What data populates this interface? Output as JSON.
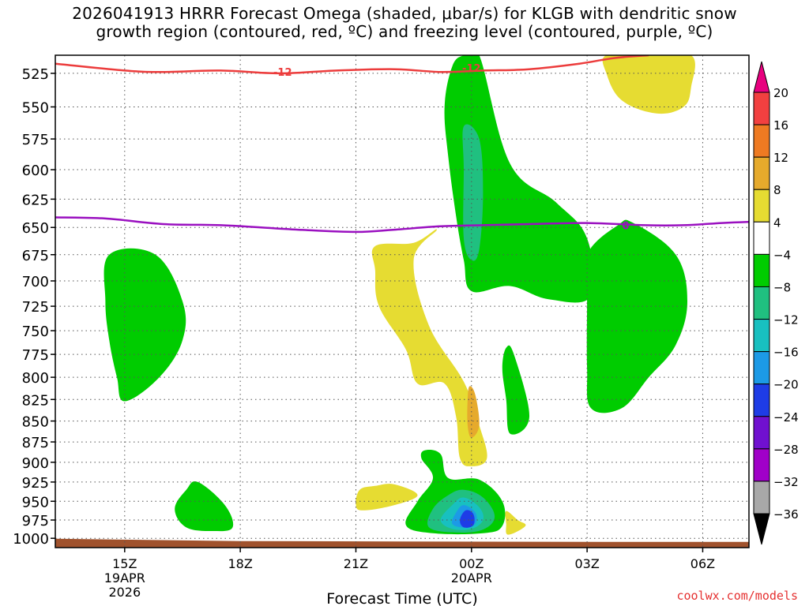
{
  "chart_data": {
    "type": "heatmap",
    "title_line1": "2026041913 HRRR Forecast Omega (shaded, μbar/s) for KLGB with dendritic snow",
    "title_line2": "growth region (contoured, red, ºC) and freezing level (contoured, purple, ºC)",
    "xlabel": "Forecast Time (UTC)",
    "ylabel": "",
    "y_scale": "log-pressure",
    "y_ticks": [
      525,
      550,
      575,
      600,
      625,
      650,
      675,
      700,
      725,
      750,
      775,
      800,
      825,
      850,
      875,
      900,
      925,
      950,
      975,
      1000
    ],
    "ylim": [
      1013,
      512
    ],
    "x_range_hours": [
      13.2,
      31.2
    ],
    "x_ticks": [
      {
        "hour": 15,
        "label": "15Z",
        "sub1": "19APR",
        "sub2": "2026"
      },
      {
        "hour": 18,
        "label": "18Z",
        "sub1": "",
        "sub2": ""
      },
      {
        "hour": 21,
        "label": "21Z",
        "sub1": "",
        "sub2": ""
      },
      {
        "hour": 24,
        "label": "00Z",
        "sub1": "20APR",
        "sub2": ""
      },
      {
        "hour": 27,
        "label": "03Z",
        "sub1": "",
        "sub2": ""
      },
      {
        "hour": 30,
        "label": "06Z",
        "sub1": "",
        "sub2": ""
      }
    ],
    "colorbar": {
      "labels": [
        "20",
        "16",
        "12",
        "8",
        "4",
        "−4",
        "−8",
        "−12",
        "−16",
        "−20",
        "−24",
        "−28",
        "−32",
        "−36"
      ],
      "colors": [
        "#e8007f",
        "#f24040",
        "#ee7a22",
        "#e6aa2c",
        "#e6dc32",
        "#ffffff",
        "#00cc00",
        "#20c080",
        "#18c0c0",
        "#1c9ae6",
        "#1e3ce6",
        "#7010d0",
        "#a000c8",
        "#a8a8a8",
        "#000000"
      ]
    },
    "regions": [
      {
        "name": "green-15z",
        "color": "#00cc00",
        "points": [
          [
            14.6,
            675
          ],
          [
            15.8,
            675
          ],
          [
            16.5,
            720
          ],
          [
            16.5,
            760
          ],
          [
            15.9,
            800
          ],
          [
            15.0,
            827
          ],
          [
            14.8,
            800
          ],
          [
            14.6,
            760
          ],
          [
            14.5,
            720
          ]
        ]
      },
      {
        "name": "green-top-00z",
        "color": "#00cc00",
        "points": [
          [
            23.8,
            512
          ],
          [
            24.2,
            512
          ],
          [
            25.0,
            595
          ],
          [
            26.2,
            628
          ],
          [
            27.0,
            660
          ],
          [
            27.1,
            715
          ],
          [
            26.0,
            718
          ],
          [
            25.0,
            705
          ],
          [
            24.0,
            710
          ],
          [
            23.8,
            680
          ],
          [
            23.6,
            640
          ],
          [
            23.4,
            590
          ],
          [
            23.3,
            550
          ],
          [
            23.5,
            520
          ]
        ]
      },
      {
        "name": "green-right",
        "color": "#00cc00",
        "points": [
          [
            27.8,
            648
          ],
          [
            28.2,
            646
          ],
          [
            29.3,
            675
          ],
          [
            29.6,
            720
          ],
          [
            29.3,
            765
          ],
          [
            28.6,
            800
          ],
          [
            27.9,
            835
          ],
          [
            27.1,
            835
          ],
          [
            27.0,
            790
          ],
          [
            27.0,
            720
          ],
          [
            27.0,
            675
          ]
        ]
      },
      {
        "name": "green-small-01z",
        "color": "#00cc00",
        "points": [
          [
            24.9,
            768
          ],
          [
            25.1,
            775
          ],
          [
            25.5,
            845
          ],
          [
            25.0,
            865
          ],
          [
            24.9,
            825
          ],
          [
            24.8,
            790
          ]
        ]
      },
      {
        "name": "green-17z",
        "color": "#00cc00",
        "points": [
          [
            16.9,
            925
          ],
          [
            17.6,
            955
          ],
          [
            17.8,
            985
          ],
          [
            17.3,
            990
          ],
          [
            16.6,
            985
          ],
          [
            16.3,
            960
          ],
          [
            16.6,
            935
          ]
        ]
      },
      {
        "name": "green-bottom-00z",
        "color": "#00cc00",
        "points": [
          [
            22.8,
            885
          ],
          [
            23.2,
            890
          ],
          [
            23.4,
            920
          ],
          [
            24.2,
            922
          ],
          [
            24.8,
            950
          ],
          [
            24.8,
            983
          ],
          [
            24.3,
            993
          ],
          [
            23.0,
            993
          ],
          [
            22.3,
            982
          ],
          [
            22.6,
            950
          ],
          [
            23.0,
            920
          ],
          [
            22.7,
            895
          ]
        ]
      },
      {
        "name": "aqua-mid-00z",
        "color": "#20c080",
        "points": [
          [
            23.8,
            565
          ],
          [
            24.2,
            575
          ],
          [
            24.3,
            620
          ],
          [
            24.2,
            670
          ],
          [
            24.0,
            680
          ],
          [
            23.8,
            660
          ],
          [
            23.8,
            600
          ]
        ]
      },
      {
        "name": "aqua-low-00z",
        "color": "#20c080",
        "points": [
          [
            23.8,
            935
          ],
          [
            24.3,
            945
          ],
          [
            24.6,
            970
          ],
          [
            24.3,
            988
          ],
          [
            23.6,
            992
          ],
          [
            22.9,
            985
          ],
          [
            23.0,
            960
          ],
          [
            23.4,
            942
          ]
        ]
      },
      {
        "name": "cyan-low-00z",
        "color": "#18c0c0",
        "points": [
          [
            23.8,
            945
          ],
          [
            24.2,
            958
          ],
          [
            24.3,
            975
          ],
          [
            24.0,
            987
          ],
          [
            23.5,
            987
          ],
          [
            23.2,
            975
          ],
          [
            23.5,
            955
          ]
        ]
      },
      {
        "name": "lightblue-low-00z",
        "color": "#1c9ae6",
        "points": [
          [
            23.8,
            955
          ],
          [
            24.1,
            965
          ],
          [
            24.1,
            980
          ],
          [
            23.8,
            985
          ],
          [
            23.5,
            980
          ],
          [
            23.6,
            965
          ]
        ]
      },
      {
        "name": "blue-low-00z",
        "color": "#1e3ce6",
        "points": [
          [
            23.85,
            962
          ],
          [
            24.05,
            967
          ],
          [
            24.05,
            982
          ],
          [
            23.8,
            985
          ],
          [
            23.7,
            975
          ]
        ]
      },
      {
        "name": "yellow-top-right",
        "color": "#e6dc32",
        "points": [
          [
            28.5,
            512
          ],
          [
            29.7,
            512
          ],
          [
            29.7,
            535
          ],
          [
            29.5,
            550
          ],
          [
            28.8,
            555
          ],
          [
            27.9,
            545
          ],
          [
            27.5,
            525
          ],
          [
            27.5,
            512
          ]
        ]
      },
      {
        "name": "yellow-mid-22z",
        "color": "#e6dc32",
        "points": [
          [
            21.5,
            667
          ],
          [
            22.5,
            664
          ],
          [
            23.1,
            652
          ],
          [
            22.5,
            680
          ],
          [
            22.9,
            745
          ],
          [
            23.8,
            805
          ],
          [
            24.2,
            855
          ],
          [
            24.4,
            895
          ],
          [
            24.0,
            905
          ],
          [
            23.7,
            895
          ],
          [
            23.6,
            845
          ],
          [
            23.3,
            807
          ],
          [
            22.6,
            807
          ],
          [
            22.3,
            770
          ],
          [
            21.6,
            725
          ],
          [
            21.5,
            690
          ]
        ]
      },
      {
        "name": "orange-850",
        "color": "#e6aa2c",
        "points": [
          [
            23.95,
            810
          ],
          [
            24.1,
            820
          ],
          [
            24.2,
            855
          ],
          [
            24.0,
            870
          ],
          [
            23.9,
            855
          ],
          [
            23.9,
            825
          ]
        ]
      },
      {
        "name": "yellow-21z",
        "color": "#e6dc32",
        "points": [
          [
            21.1,
            935
          ],
          [
            21.5,
            930
          ],
          [
            22.0,
            928
          ],
          [
            22.6,
            942
          ],
          [
            22.0,
            955
          ],
          [
            21.2,
            962
          ],
          [
            21.0,
            955
          ]
        ]
      },
      {
        "name": "yellow-01z",
        "color": "#e6dc32",
        "points": [
          [
            24.9,
            963
          ],
          [
            25.2,
            975
          ],
          [
            25.4,
            983
          ],
          [
            24.95,
            995
          ],
          [
            24.9,
            980
          ]
        ]
      }
    ],
    "contours": [
      {
        "name": "dendritic-snow-growth-region",
        "color": "#ec3c3c",
        "label": "-12",
        "label_positions": [
          [
            19.1,
            524
          ],
          [
            24.0,
            521
          ]
        ],
        "points": [
          [
            13.2,
            518
          ],
          [
            15.0,
            523
          ],
          [
            16.0,
            524
          ],
          [
            17.5,
            523
          ],
          [
            19.0,
            525
          ],
          [
            20.5,
            523
          ],
          [
            22.0,
            522
          ],
          [
            23.2,
            524
          ],
          [
            24.3,
            523
          ],
          [
            25.5,
            522
          ],
          [
            26.8,
            518
          ],
          [
            27.7,
            514
          ],
          [
            28.6,
            512
          ]
        ]
      },
      {
        "name": "freezing-level",
        "color": "#9a10c0",
        "label": "0",
        "label_positions": [
          [
            28.0,
            648
          ]
        ],
        "points": [
          [
            13.2,
            641
          ],
          [
            14.5,
            642
          ],
          [
            16.0,
            647
          ],
          [
            17.5,
            648
          ],
          [
            19.5,
            652
          ],
          [
            21.0,
            654
          ],
          [
            22.0,
            652
          ],
          [
            23.2,
            649
          ],
          [
            24.3,
            648
          ],
          [
            25.5,
            647
          ],
          [
            27.0,
            646
          ],
          [
            28.5,
            648
          ],
          [
            29.5,
            648
          ],
          [
            30.5,
            646
          ],
          [
            31.2,
            645
          ]
        ]
      }
    ],
    "terrain": {
      "color": "#a0522d",
      "pressure": 1005
    }
  },
  "footer": {
    "credit": "coolwx.com/models"
  }
}
